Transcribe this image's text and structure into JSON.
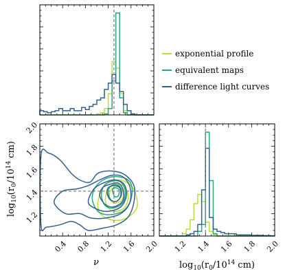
{
  "chart_data": {
    "type": "corner",
    "colors": {
      "exponential_profile": "#bddc37",
      "equivalent_maps": "#22a883",
      "difference_light_curves": "#355f8d",
      "truth": "#7a7a7a"
    },
    "truth": {
      "nu": 1.3,
      "log_r0": 1.4
    },
    "legend": {
      "placement": "top-right",
      "entries": [
        {
          "key": "exponential_profile",
          "label": "exponential profile"
        },
        {
          "key": "equivalent_maps",
          "label": "equivalent maps"
        },
        {
          "key": "difference_light_curves",
          "label": "difference light curves"
        }
      ]
    },
    "nu_axis": {
      "label": "ν",
      "range": [
        0.0,
        2.0
      ],
      "ticks": [
        0.4,
        0.8,
        1.2,
        1.6,
        2.0
      ],
      "tick_labels": [
        "0.4",
        "0.8",
        "1.2",
        "1.6",
        "2.0"
      ]
    },
    "logr_axis": {
      "label_prefix": "log",
      "label_sub": "10",
      "label_rest": "(r",
      "label_sub2": "0",
      "label_tail": "/10",
      "label_sup": "14",
      "label_unit": " cm)",
      "range": [
        1.0,
        2.0
      ],
      "ticks": [
        1.2,
        1.4,
        1.6,
        1.8,
        2.0
      ],
      "tick_labels": [
        "1.2",
        "1.4",
        "1.6",
        "1.8",
        "2.0"
      ]
    },
    "hist_nu": {
      "bin_edges": [
        0.0,
        0.067,
        0.133,
        0.2,
        0.267,
        0.333,
        0.4,
        0.467,
        0.533,
        0.6,
        0.667,
        0.733,
        0.8,
        0.867,
        0.933,
        1.0,
        1.067,
        1.133,
        1.2,
        1.267,
        1.333,
        1.4,
        1.467,
        1.533,
        1.6,
        1.667,
        1.733,
        1.8,
        1.867,
        1.933,
        2.0
      ],
      "series": [
        {
          "key": "exponential_profile",
          "counts": [
            0,
            0,
            0,
            0,
            0,
            0,
            0,
            0,
            0,
            0,
            0,
            0,
            0,
            0,
            0,
            0.5,
            1,
            3,
            10,
            25,
            22,
            10,
            2,
            0,
            0,
            0,
            0,
            0,
            0,
            0
          ]
        },
        {
          "key": "equivalent_maps",
          "counts": [
            0,
            0,
            0,
            0,
            0,
            0,
            0,
            0,
            0,
            0,
            0,
            0,
            0,
            0,
            0,
            0,
            0,
            0.5,
            3,
            16,
            48,
            8,
            1,
            0,
            0,
            0,
            0,
            0,
            0,
            0
          ]
        },
        {
          "key": "difference_light_curves",
          "counts": [
            2,
            1.5,
            1,
            1.5,
            2,
            3,
            2,
            2,
            3,
            2,
            2,
            3.5,
            2.5,
            4,
            5,
            7,
            8,
            12,
            15,
            19,
            15,
            11,
            5,
            2,
            0.5,
            0,
            0,
            0,
            0,
            0
          ]
        }
      ]
    },
    "hist_logr": {
      "bin_edges": [
        1.0,
        1.033,
        1.067,
        1.1,
        1.133,
        1.167,
        1.2,
        1.233,
        1.267,
        1.3,
        1.333,
        1.367,
        1.4,
        1.433,
        1.467,
        1.5,
        1.533,
        1.567,
        1.6,
        1.633,
        1.667,
        1.7,
        1.733,
        1.767,
        1.8,
        1.833,
        1.867,
        1.9,
        1.933,
        1.967,
        2.0
      ],
      "series": [
        {
          "key": "exponential_profile",
          "counts": [
            0,
            0,
            0,
            0,
            0,
            0,
            1,
            3,
            7,
            14,
            18,
            15,
            6,
            2,
            0.5,
            0,
            0,
            0,
            0,
            0,
            0,
            0,
            0,
            0,
            0,
            0,
            0,
            0,
            0,
            0
          ]
        },
        {
          "key": "equivalent_maps",
          "counts": [
            0,
            0,
            0,
            0,
            0,
            0,
            0,
            0,
            0,
            0,
            2,
            5,
            45,
            24,
            1,
            0,
            0,
            0,
            0,
            0,
            0,
            0,
            0,
            0,
            0,
            0,
            0,
            0,
            0,
            0
          ]
        },
        {
          "key": "difference_light_curves",
          "counts": [
            0,
            0,
            0,
            0,
            0,
            0,
            0,
            0.5,
            1,
            2,
            5,
            20,
            38,
            8,
            3,
            2,
            1.5,
            1,
            1,
            1,
            0.5,
            0.5,
            0.5,
            0.5,
            0.3,
            0.3,
            0.3,
            0.2,
            0.2,
            0.1
          ]
        }
      ]
    },
    "contours_2d": [
      {
        "key": "exponential_profile",
        "levels": [
          [
            [
              1.02,
              1.25
            ],
            [
              1.1,
              1.18
            ],
            [
              1.3,
              1.14
            ],
            [
              1.52,
              1.16
            ],
            [
              1.7,
              1.25
            ],
            [
              1.68,
              1.38
            ],
            [
              1.55,
              1.47
            ],
            [
              1.35,
              1.5
            ],
            [
              1.15,
              1.46
            ],
            [
              1.04,
              1.35
            ]
          ],
          [
            [
              1.15,
              1.32
            ],
            [
              1.22,
              1.24
            ],
            [
              1.35,
              1.22
            ],
            [
              1.5,
              1.26
            ],
            [
              1.55,
              1.36
            ],
            [
              1.48,
              1.44
            ],
            [
              1.35,
              1.46
            ],
            [
              1.2,
              1.42
            ]
          ],
          [
            [
              1.22,
              1.36
            ],
            [
              1.28,
              1.3
            ],
            [
              1.38,
              1.3
            ],
            [
              1.46,
              1.34
            ],
            [
              1.45,
              1.41
            ],
            [
              1.36,
              1.44
            ],
            [
              1.26,
              1.42
            ]
          ]
        ]
      },
      {
        "key": "equivalent_maps",
        "levels": [
          [
            [
              0.92,
              1.33
            ],
            [
              1.02,
              1.22
            ],
            [
              1.22,
              1.19
            ],
            [
              1.45,
              1.22
            ],
            [
              1.58,
              1.3
            ],
            [
              1.62,
              1.42
            ],
            [
              1.55,
              1.5
            ],
            [
              1.35,
              1.53
            ],
            [
              1.15,
              1.51
            ],
            [
              0.98,
              1.44
            ]
          ],
          [
            [
              1.08,
              1.36
            ],
            [
              1.15,
              1.27
            ],
            [
              1.3,
              1.25
            ],
            [
              1.46,
              1.3
            ],
            [
              1.5,
              1.4
            ],
            [
              1.42,
              1.48
            ],
            [
              1.28,
              1.49
            ],
            [
              1.13,
              1.45
            ]
          ],
          [
            [
              1.2,
              1.38
            ],
            [
              1.25,
              1.32
            ],
            [
              1.35,
              1.31
            ],
            [
              1.43,
              1.36
            ],
            [
              1.42,
              1.43
            ],
            [
              1.33,
              1.46
            ],
            [
              1.23,
              1.44
            ]
          ],
          [
            [
              1.28,
              1.39
            ],
            [
              1.32,
              1.35
            ],
            [
              1.38,
              1.36
            ],
            [
              1.39,
              1.41
            ],
            [
              1.33,
              1.43
            ],
            [
              1.28,
              1.42
            ]
          ]
        ]
      },
      {
        "key": "difference_light_curves",
        "levels": [
          [
            [
              0.02,
              1.72
            ],
            [
              0.15,
              1.74
            ],
            [
              0.35,
              1.68
            ],
            [
              0.55,
              1.56
            ],
            [
              0.7,
              1.5
            ],
            [
              0.88,
              1.48
            ],
            [
              1.02,
              1.56
            ],
            [
              1.25,
              1.58
            ],
            [
              1.48,
              1.55
            ],
            [
              1.65,
              1.45
            ],
            [
              1.65,
              1.3
            ],
            [
              1.55,
              1.17
            ],
            [
              1.35,
              1.1
            ],
            [
              1.1,
              1.07
            ],
            [
              0.85,
              1.05
            ],
            [
              0.7,
              1.1
            ],
            [
              0.55,
              1.13
            ],
            [
              0.35,
              1.1
            ],
            [
              0.12,
              1.08
            ],
            [
              0.02,
              1.1
            ]
          ],
          [
            [
              0.25,
              1.3
            ],
            [
              0.45,
              1.2
            ],
            [
              0.7,
              1.2
            ],
            [
              0.9,
              1.16
            ],
            [
              1.15,
              1.16
            ],
            [
              1.42,
              1.2
            ],
            [
              1.58,
              1.3
            ],
            [
              1.58,
              1.44
            ],
            [
              1.45,
              1.53
            ],
            [
              1.25,
              1.54
            ],
            [
              1.05,
              1.5
            ],
            [
              0.85,
              1.45
            ],
            [
              0.65,
              1.42
            ],
            [
              0.4,
              1.4
            ]
          ],
          [
            [
              0.85,
              1.3
            ],
            [
              1.0,
              1.24
            ],
            [
              1.2,
              1.22
            ],
            [
              1.42,
              1.26
            ],
            [
              1.52,
              1.36
            ],
            [
              1.48,
              1.46
            ],
            [
              1.33,
              1.5
            ],
            [
              1.15,
              1.48
            ],
            [
              0.95,
              1.42
            ]
          ],
          [
            [
              1.05,
              1.36
            ],
            [
              1.15,
              1.28
            ],
            [
              1.3,
              1.26
            ],
            [
              1.45,
              1.31
            ],
            [
              1.47,
              1.4
            ],
            [
              1.38,
              1.47
            ],
            [
              1.22,
              1.46
            ],
            [
              1.1,
              1.43
            ]
          ],
          [
            [
              1.18,
              1.38
            ],
            [
              1.24,
              1.32
            ],
            [
              1.35,
              1.31
            ],
            [
              1.42,
              1.36
            ],
            [
              1.4,
              1.43
            ],
            [
              1.3,
              1.45
            ],
            [
              1.2,
              1.43
            ]
          ]
        ]
      }
    ]
  }
}
